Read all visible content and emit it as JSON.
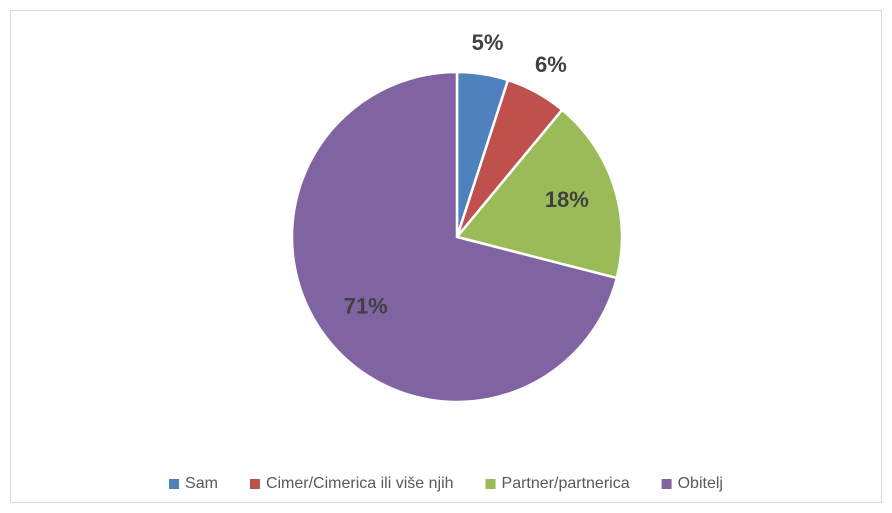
{
  "chart_data": {
    "type": "pie",
    "categories": [
      "Sam",
      "Cimer/Cimerica ili više njih",
      "Partner/partnerica",
      "Obitelj"
    ],
    "values": [
      5,
      6,
      18,
      71
    ],
    "value_labels": [
      "5%",
      "6%",
      "18%",
      "71%"
    ],
    "colors": [
      "#4f81bd",
      "#c0504d",
      "#9bbb59",
      "#8064a2"
    ],
    "legend": "bottom"
  }
}
